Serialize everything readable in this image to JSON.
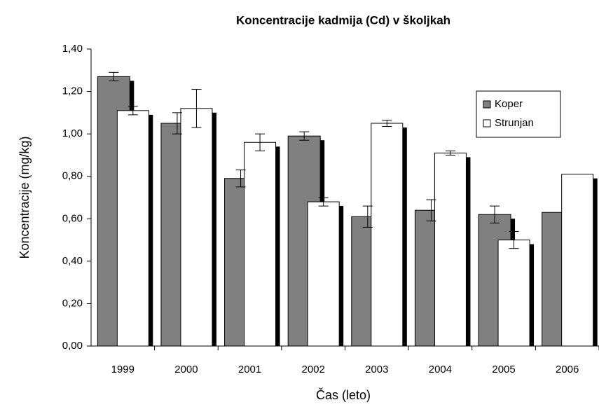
{
  "chart_data": {
    "type": "bar",
    "title": "Koncentracije kadmija (Cd) v školjkah",
    "x_label": "Čas (leto)",
    "y_label": "Koncentracije (mg/kg)",
    "categories": [
      "1999",
      "2000",
      "2001",
      "2002",
      "2003",
      "2004",
      "2005",
      "2006"
    ],
    "series": [
      {
        "name": "Koper",
        "color": "#808080",
        "values": [
          1.27,
          1.05,
          0.79,
          0.99,
          0.61,
          0.64,
          0.62,
          0.63
        ],
        "errors": [
          0.02,
          0.05,
          0.04,
          0.02,
          0.05,
          0.05,
          0.04,
          null
        ]
      },
      {
        "name": "Strunjan",
        "color": "#ffffff",
        "values": [
          1.11,
          1.12,
          0.96,
          0.68,
          1.05,
          0.91,
          0.5,
          0.81
        ],
        "errors": [
          0.02,
          0.09,
          0.04,
          0.02,
          0.015,
          0.01,
          0.04,
          null
        ]
      }
    ],
    "ylim": [
      0,
      1.4
    ],
    "yticks": [
      {
        "value": 0,
        "label": "0,00"
      },
      {
        "value": 0.2,
        "label": "0,20"
      },
      {
        "value": 0.4,
        "label": "0,40"
      },
      {
        "value": 0.6,
        "label": "0,60"
      },
      {
        "value": 0.8,
        "label": "0,80"
      },
      {
        "value": 1.0,
        "label": "1,00"
      },
      {
        "value": 1.2,
        "label": "1,20"
      },
      {
        "value": 1.4,
        "label": "1,40"
      }
    ],
    "legend": "top-right",
    "grid": false
  }
}
